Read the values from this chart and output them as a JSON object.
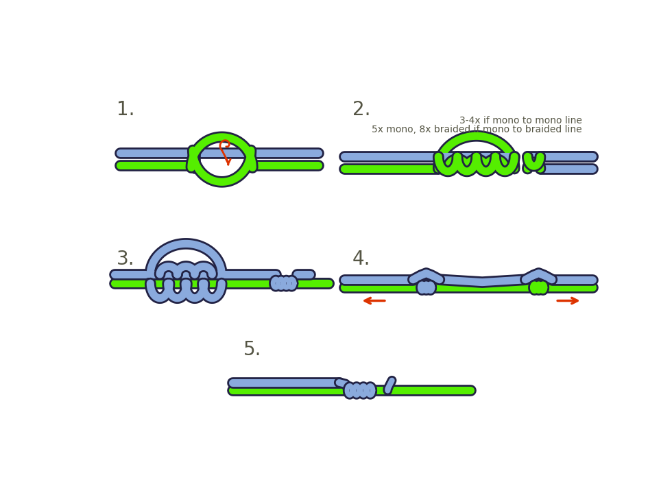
{
  "bg_color": "#ffffff",
  "green_color": "#55ee00",
  "blue_color": "#8aaadd",
  "orange_color": "#dd3300",
  "dark_outline": "#222244",
  "text_color": "#555544",
  "step_labels": [
    "1.",
    "2.",
    "3.",
    "4.",
    "5."
  ],
  "annotation_line1": "3-4x if mono to mono line",
  "annotation_line2": "5x mono, 8x braided if mono to braided line",
  "glw": 8,
  "blw": 8,
  "golw": 12,
  "bolw": 12
}
